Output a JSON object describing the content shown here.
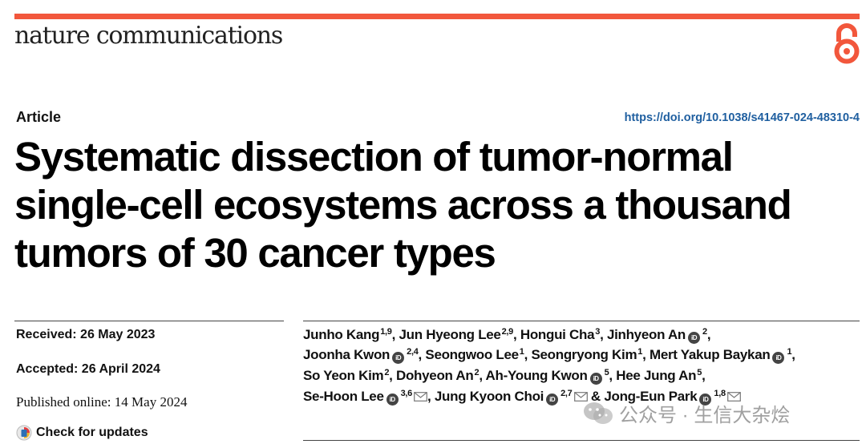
{
  "header": {
    "journal": "nature communications",
    "accent_color": "#f2573c"
  },
  "article": {
    "type": "Article",
    "doi": "https://doi.org/10.1038/s41467-024-48310-4",
    "title_lines": [
      "Systematic dissection of tumor-normal",
      "single-cell ecosystems across a thousand",
      "tumors of 30 cancer types"
    ]
  },
  "dates": {
    "received": "Received: 26 May 2023",
    "accepted": "Accepted: 26 April 2024",
    "published": "Published online: 14 May 2024"
  },
  "check_updates": "Check for updates",
  "authors": {
    "line1": [
      {
        "name": "Junho Kang",
        "sup": "1,9",
        "orcid": false,
        "sep": ", "
      },
      {
        "name": "Jun Hyeong Lee",
        "sup": "2,9",
        "orcid": false,
        "sep": ", "
      },
      {
        "name": "Hongui Cha",
        "sup": "3",
        "orcid": false,
        "sep": ", "
      },
      {
        "name": "Jinhyeon An",
        "sup": "2",
        "orcid": true,
        "sep": ","
      }
    ],
    "line2": [
      {
        "name": "Joonha Kwon",
        "sup": "2,4",
        "orcid": true,
        "sep": ", "
      },
      {
        "name": "Seongwoo Lee",
        "sup": "1",
        "orcid": false,
        "sep": ", "
      },
      {
        "name": "Seongryong Kim",
        "sup": "1",
        "orcid": false,
        "sep": ", "
      },
      {
        "name": "Mert Yakup Baykan",
        "sup": "1",
        "orcid": true,
        "sep": ","
      }
    ],
    "line3": [
      {
        "name": "So Yeon Kim",
        "sup": "2",
        "orcid": false,
        "sep": ", "
      },
      {
        "name": "Dohyeon An",
        "sup": "2",
        "orcid": false,
        "sep": ", "
      },
      {
        "name": "Ah-Young Kwon",
        "sup": "5",
        "orcid": true,
        "sep": ", "
      },
      {
        "name": "Hee Jung An",
        "sup": "5",
        "orcid": false,
        "sep": ","
      }
    ],
    "line4": [
      {
        "name": "Se-Hoon Lee",
        "sup": "3,6",
        "orcid": true,
        "mail": true,
        "sep": ", "
      },
      {
        "name": "Jung Kyoon Choi",
        "sup": "2,7",
        "orcid": true,
        "mail": true,
        "sep": " & "
      },
      {
        "name": "Jong-Eun Park",
        "sup": "1,8",
        "orcid": true,
        "mail": true,
        "sep": ""
      }
    ]
  },
  "watermark": "公众号 · 生信大杂烩",
  "icons": [
    "open-access-icon",
    "check-updates-icon",
    "orcid-icon",
    "email-icon",
    "wechat-icon"
  ]
}
